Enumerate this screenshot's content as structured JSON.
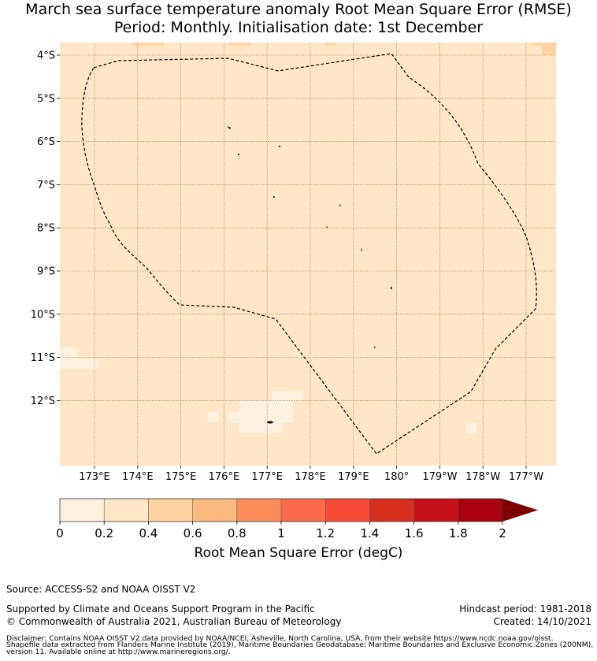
{
  "title": {
    "line1": "March sea surface temperature anomaly Root Mean Square Error (RMSE)",
    "line2": "Period: Monthly. Initialisation date: 1st December"
  },
  "map": {
    "lat_labels": [
      "4°S",
      "5°S",
      "6°S",
      "7°S",
      "8°S",
      "9°S",
      "10°S",
      "11°S",
      "12°S"
    ],
    "lon_labels": [
      "173°E",
      "174°E",
      "175°E",
      "176°E",
      "177°E",
      "178°E",
      "179°E",
      "180°",
      "179°W",
      "178°W",
      "177°W"
    ],
    "eez_boundary_style": "dashed",
    "background_color": "#fee6c6"
  },
  "colorbar": {
    "title": "Root Mean Square Error (degC)",
    "tick_labels": [
      "0",
      "0.2",
      "0.4",
      "0.6",
      "0.8",
      "1",
      "1.2",
      "1.4",
      "1.6",
      "1.8",
      "2"
    ],
    "colors": [
      "#fff1e0",
      "#fee6c6",
      "#fdd3a0",
      "#fdba7e",
      "#fc8d59",
      "#fc6a4a",
      "#f54a38",
      "#d8301f",
      "#c5101a",
      "#a8000f"
    ],
    "overflow_color": "#7f0000"
  },
  "footer": {
    "source": "Source: ACCESS-S2 and NOAA OISST V2",
    "support": "Supported by Climate and Oceans Support Program in the Pacific",
    "copyright": "© Commonwealth of Australia 2021, Australian Bureau of Meteorology",
    "hindcast": "Hindcast period: 1981-2018",
    "created": "Created: 14/10/2021",
    "disclaimer_line1": "Disclaimer: Contains NOAA OISST V2 data provided by NOAA/NCEI, Asheville, North Carolina, USA, from their website https://www.ncdc.noaa.gov/oisst.",
    "disclaimer_line2": "Shapefile data extracted from Flanders Marine Institute (2019), Maritime Boundaries Geodatabase: Maritime Boundaries and Exclusive Economic Zones (200NM),",
    "disclaimer_line3": "version 11. Available online at http://www.marineregions.org/."
  }
}
